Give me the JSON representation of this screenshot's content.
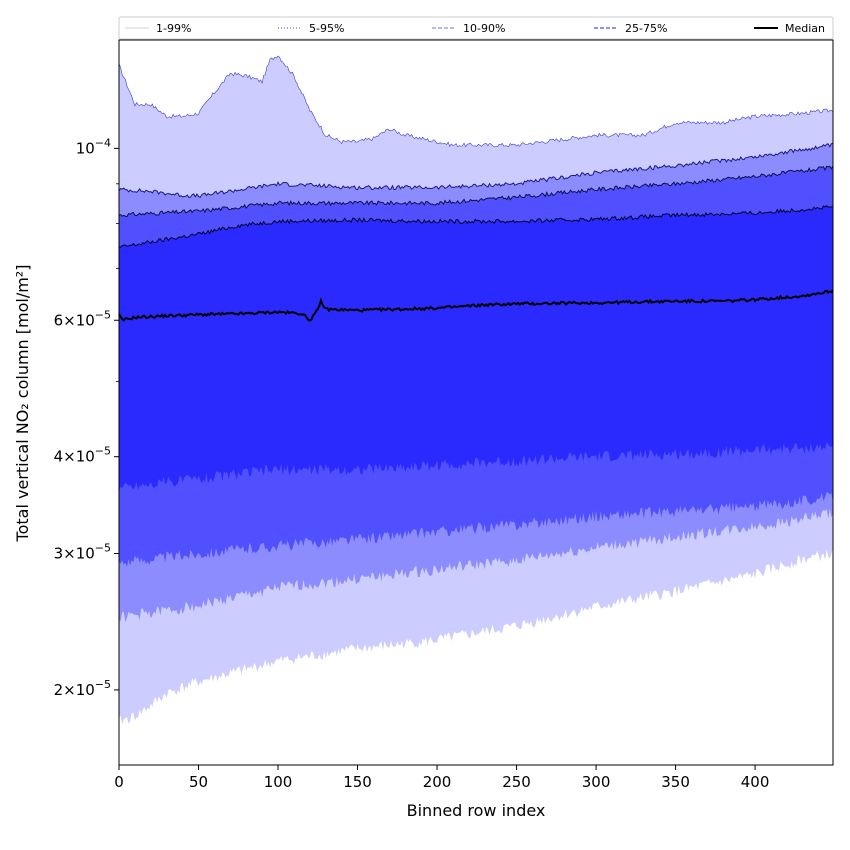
{
  "chart_data": {
    "type": "area",
    "xlabel": "Binned row index",
    "ylabel": "Total vertical NO₂ column [mol/m²]",
    "xlim": [
      0,
      449
    ],
    "ylim": [
      1.6e-05,
      0.000138
    ],
    "yscale": "log",
    "xticks": [
      0,
      50,
      100,
      150,
      200,
      250,
      300,
      350,
      400
    ],
    "yticks": [
      {
        "value": 2e-05,
        "mant": "2",
        "exp": "−5"
      },
      {
        "value": 3e-05,
        "mant": "3",
        "exp": "−5"
      },
      {
        "value": 4e-05,
        "mant": "4",
        "exp": "−5"
      },
      {
        "value": 6e-05,
        "mant": "6",
        "exp": "−5"
      },
      {
        "value": 0.0001,
        "mant": "",
        "exp": "−4"
      }
    ],
    "legend": {
      "position": "top",
      "entries": [
        {
          "label": "1-99%",
          "color": "#d6d6f5",
          "style": "solid"
        },
        {
          "label": "5-95%",
          "color": "#6f6fd0",
          "style": "dotted"
        },
        {
          "label": "10-90%",
          "color": "#8c8cff",
          "style": "dashed"
        },
        {
          "label": "25-75%",
          "color": "#5050ff",
          "style": "dashed"
        },
        {
          "label": "Median",
          "color": "#000000",
          "style": "solid"
        }
      ]
    },
    "bands": [
      {
        "name": "1-99%",
        "fill": "#ccccff",
        "upper": [
          [
            0,
            0.000128
          ],
          [
            10,
            0.000114
          ],
          [
            20,
            0.000114
          ],
          [
            30,
            0.00011
          ],
          [
            40,
            0.00011
          ],
          [
            50,
            0.000111
          ],
          [
            60,
            0.000118
          ],
          [
            70,
            0.000125
          ],
          [
            80,
            0.000124
          ],
          [
            90,
            0.000122
          ],
          [
            95,
            0.00013
          ],
          [
            100,
            0.000132
          ],
          [
            110,
            0.000124
          ],
          [
            120,
            0.000112
          ],
          [
            130,
            0.000104
          ],
          [
            140,
            0.000102
          ],
          [
            150,
            0.000102
          ],
          [
            160,
            0.000103
          ],
          [
            170,
            0.000106
          ],
          [
            180,
            0.000104
          ],
          [
            190,
            0.000103
          ],
          [
            200,
            0.000102
          ],
          [
            210,
            0.000101
          ],
          [
            250,
            0.000101
          ],
          [
            300,
            0.000104
          ],
          [
            330,
            0.000104
          ],
          [
            350,
            0.000108
          ],
          [
            380,
            0.000108
          ],
          [
            400,
            0.00011
          ],
          [
            430,
            0.000111
          ],
          [
            449,
            0.000112
          ]
        ],
        "lower": [
          [
            0,
            1.82e-05
          ],
          [
            10,
            1.85e-05
          ],
          [
            20,
            1.91e-05
          ],
          [
            30,
            1.98e-05
          ],
          [
            50,
            2.05e-05
          ],
          [
            100,
            2.18e-05
          ],
          [
            150,
            2.26e-05
          ],
          [
            200,
            2.32e-05
          ],
          [
            250,
            2.42e-05
          ],
          [
            300,
            2.56e-05
          ],
          [
            350,
            2.68e-05
          ],
          [
            400,
            2.82e-05
          ],
          [
            430,
            2.95e-05
          ],
          [
            449,
            3e-05
          ]
        ]
      },
      {
        "name": "5-95%",
        "fill": "#8c8cff",
        "upper": [
          [
            0,
            8.85e-05
          ],
          [
            20,
            8.8e-05
          ],
          [
            40,
            8.7e-05
          ],
          [
            50,
            8.68e-05
          ],
          [
            100,
            9e-05
          ],
          [
            150,
            8.9e-05
          ],
          [
            200,
            8.9e-05
          ],
          [
            250,
            9e-05
          ],
          [
            300,
            9.3e-05
          ],
          [
            350,
            9.5e-05
          ],
          [
            400,
            9.75e-05
          ],
          [
            449,
            0.000101
          ]
        ],
        "lower": [
          [
            0,
            2.48e-05
          ],
          [
            50,
            2.57e-05
          ],
          [
            100,
            2.71e-05
          ],
          [
            150,
            2.78e-05
          ],
          [
            200,
            2.86e-05
          ],
          [
            250,
            2.94e-05
          ],
          [
            300,
            3.05e-05
          ],
          [
            350,
            3.15e-05
          ],
          [
            400,
            3.25e-05
          ],
          [
            449,
            3.38e-05
          ]
        ]
      },
      {
        "name": "10-90%",
        "fill": "#5050ff",
        "upper": [
          [
            0,
            8.2e-05
          ],
          [
            50,
            8.3e-05
          ],
          [
            100,
            8.5e-05
          ],
          [
            150,
            8.5e-05
          ],
          [
            200,
            8.5e-05
          ],
          [
            250,
            8.65e-05
          ],
          [
            300,
            8.85e-05
          ],
          [
            350,
            9e-05
          ],
          [
            400,
            9.2e-05
          ],
          [
            449,
            9.45e-05
          ]
        ],
        "lower": [
          [
            0,
            2.92e-05
          ],
          [
            50,
            3e-05
          ],
          [
            100,
            3.07e-05
          ],
          [
            150,
            3.13e-05
          ],
          [
            200,
            3.2e-05
          ],
          [
            250,
            3.27e-05
          ],
          [
            300,
            3.35e-05
          ],
          [
            350,
            3.4e-05
          ],
          [
            400,
            3.45e-05
          ],
          [
            449,
            3.55e-05
          ]
        ]
      },
      {
        "name": "25-75%",
        "fill": "#2a2aff",
        "upper": [
          [
            0,
            7.45e-05
          ],
          [
            25,
            7.6e-05
          ],
          [
            50,
            7.75e-05
          ],
          [
            75,
            7.95e-05
          ],
          [
            100,
            8.05e-05
          ],
          [
            150,
            8.08e-05
          ],
          [
            200,
            8.05e-05
          ],
          [
            250,
            8.05e-05
          ],
          [
            300,
            8.1e-05
          ],
          [
            350,
            8.2e-05
          ],
          [
            400,
            8.25e-05
          ],
          [
            449,
            8.4e-05
          ]
        ],
        "lower": [
          [
            0,
            3.65e-05
          ],
          [
            50,
            3.75e-05
          ],
          [
            100,
            3.85e-05
          ],
          [
            150,
            3.85e-05
          ],
          [
            200,
            3.9e-05
          ],
          [
            250,
            3.95e-05
          ],
          [
            300,
            4e-05
          ],
          [
            350,
            4.03e-05
          ],
          [
            400,
            4.08e-05
          ],
          [
            449,
            4.12e-05
          ]
        ]
      }
    ],
    "series": [
      {
        "name": "Median",
        "color": "#000000",
        "values": [
          [
            0,
            6.1e-05
          ],
          [
            2,
            6e-05
          ],
          [
            10,
            6.05e-05
          ],
          [
            30,
            6.08e-05
          ],
          [
            50,
            6.1e-05
          ],
          [
            80,
            6.12e-05
          ],
          [
            100,
            6.15e-05
          ],
          [
            115,
            6.12e-05
          ],
          [
            120,
            6e-05
          ],
          [
            125,
            6.18e-05
          ],
          [
            127,
            6.35e-05
          ],
          [
            130,
            6.2e-05
          ],
          [
            150,
            6.18e-05
          ],
          [
            200,
            6.22e-05
          ],
          [
            230,
            6.28e-05
          ],
          [
            250,
            6.3e-05
          ],
          [
            300,
            6.32e-05
          ],
          [
            350,
            6.35e-05
          ],
          [
            380,
            6.35e-05
          ],
          [
            400,
            6.38e-05
          ],
          [
            430,
            6.45e-05
          ],
          [
            449,
            6.55e-05
          ]
        ]
      }
    ]
  }
}
